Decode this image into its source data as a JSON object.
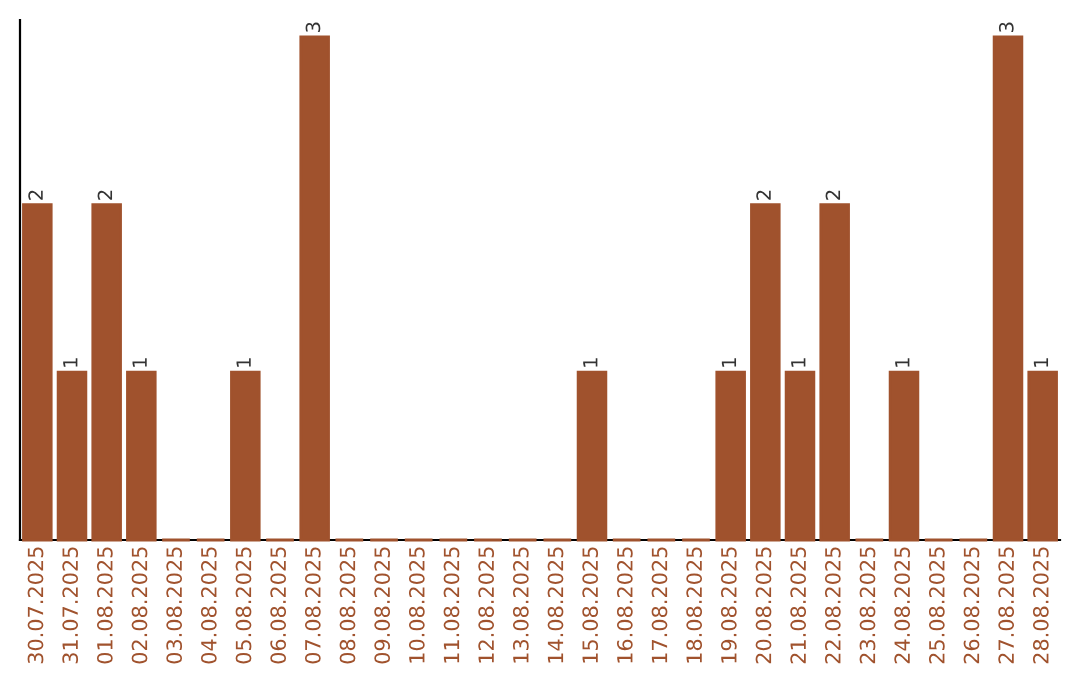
{
  "chart_data": {
    "type": "bar",
    "categories": [
      "30.07.2025",
      "31.07.2025",
      "01.08.2025",
      "02.08.2025",
      "03.08.2025",
      "04.08.2025",
      "05.08.2025",
      "06.08.2025",
      "07.08.2025",
      "08.08.2025",
      "09.08.2025",
      "10.08.2025",
      "11.08.2025",
      "12.08.2025",
      "13.08.2025",
      "14.08.2025",
      "15.08.2025",
      "16.08.2025",
      "17.08.2025",
      "18.08.2025",
      "19.08.2025",
      "20.08.2025",
      "21.08.2025",
      "22.08.2025",
      "23.08.2025",
      "24.08.2025",
      "25.08.2025",
      "26.08.2025",
      "27.08.2025",
      "28.08.2025"
    ],
    "values": [
      2,
      1,
      2,
      1,
      0,
      0,
      1,
      0,
      3,
      0,
      0,
      0,
      0,
      0,
      0,
      0,
      1,
      0,
      0,
      0,
      1,
      2,
      1,
      2,
      0,
      1,
      0,
      0,
      3,
      1
    ],
    "value_labels": [
      "2",
      "1",
      "2",
      "1",
      null,
      null,
      "1",
      null,
      "3",
      null,
      null,
      null,
      null,
      null,
      null,
      null,
      "1",
      null,
      null,
      null,
      "1",
      "2",
      "1",
      "2",
      null,
      "1",
      null,
      null,
      "3",
      "1"
    ],
    "color": "#a0522d",
    "ylim": [
      0,
      3.1
    ],
    "tick_labels": "x",
    "grid": false,
    "legend": false
  }
}
